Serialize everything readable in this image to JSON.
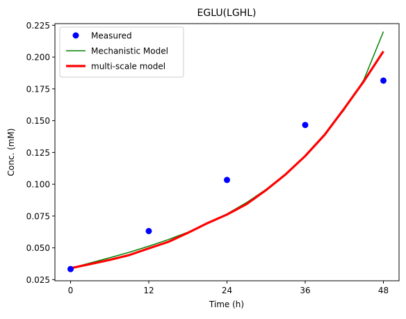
{
  "chart_data": {
    "type": "line",
    "title": "EGLU(LGHL)",
    "xlabel": "Time (h)",
    "ylabel": "Conc. (mM)",
    "xlim": [
      -2.4,
      50.4
    ],
    "ylim": [
      0.0241,
      0.2263
    ],
    "x_ticks": [
      "0",
      "12",
      "24",
      "36",
      "48"
    ],
    "y_ticks": [
      "0.025",
      "0.050",
      "0.075",
      "0.100",
      "0.125",
      "0.150",
      "0.175",
      "0.200",
      "0.225"
    ],
    "grid": false,
    "legend_position": "top-left",
    "series": [
      {
        "name": "Measured",
        "kind": "scatter",
        "color": "#0000ff",
        "x": [
          0,
          12,
          24,
          36,
          48
        ],
        "y": [
          0.0333,
          0.0632,
          0.1034,
          0.1466,
          0.1815
        ]
      },
      {
        "name": "Mechanistic Model",
        "kind": "line",
        "color": "#008000",
        "x": [
          0,
          3,
          6,
          9,
          12,
          15,
          18,
          21,
          24,
          27,
          30,
          33,
          36,
          39,
          42,
          45,
          48
        ],
        "y": [
          0.034,
          0.0381,
          0.0422,
          0.0465,
          0.0513,
          0.0565,
          0.0623,
          0.069,
          0.0767,
          0.0856,
          0.096,
          0.108,
          0.1222,
          0.1389,
          0.1586,
          0.1822,
          0.22
        ]
      },
      {
        "name": "multi-scale model",
        "kind": "line",
        "color": "#ff0000",
        "x": [
          0,
          3,
          6,
          9,
          12,
          15,
          18,
          21,
          24,
          27,
          30,
          33,
          36,
          39,
          42,
          45,
          48
        ],
        "y": [
          0.034,
          0.0372,
          0.0405,
          0.0443,
          0.0496,
          0.0547,
          0.0618,
          0.0694,
          0.0762,
          0.0844,
          0.0954,
          0.1078,
          0.1222,
          0.139,
          0.1596,
          0.181,
          0.2045
        ]
      }
    ]
  }
}
